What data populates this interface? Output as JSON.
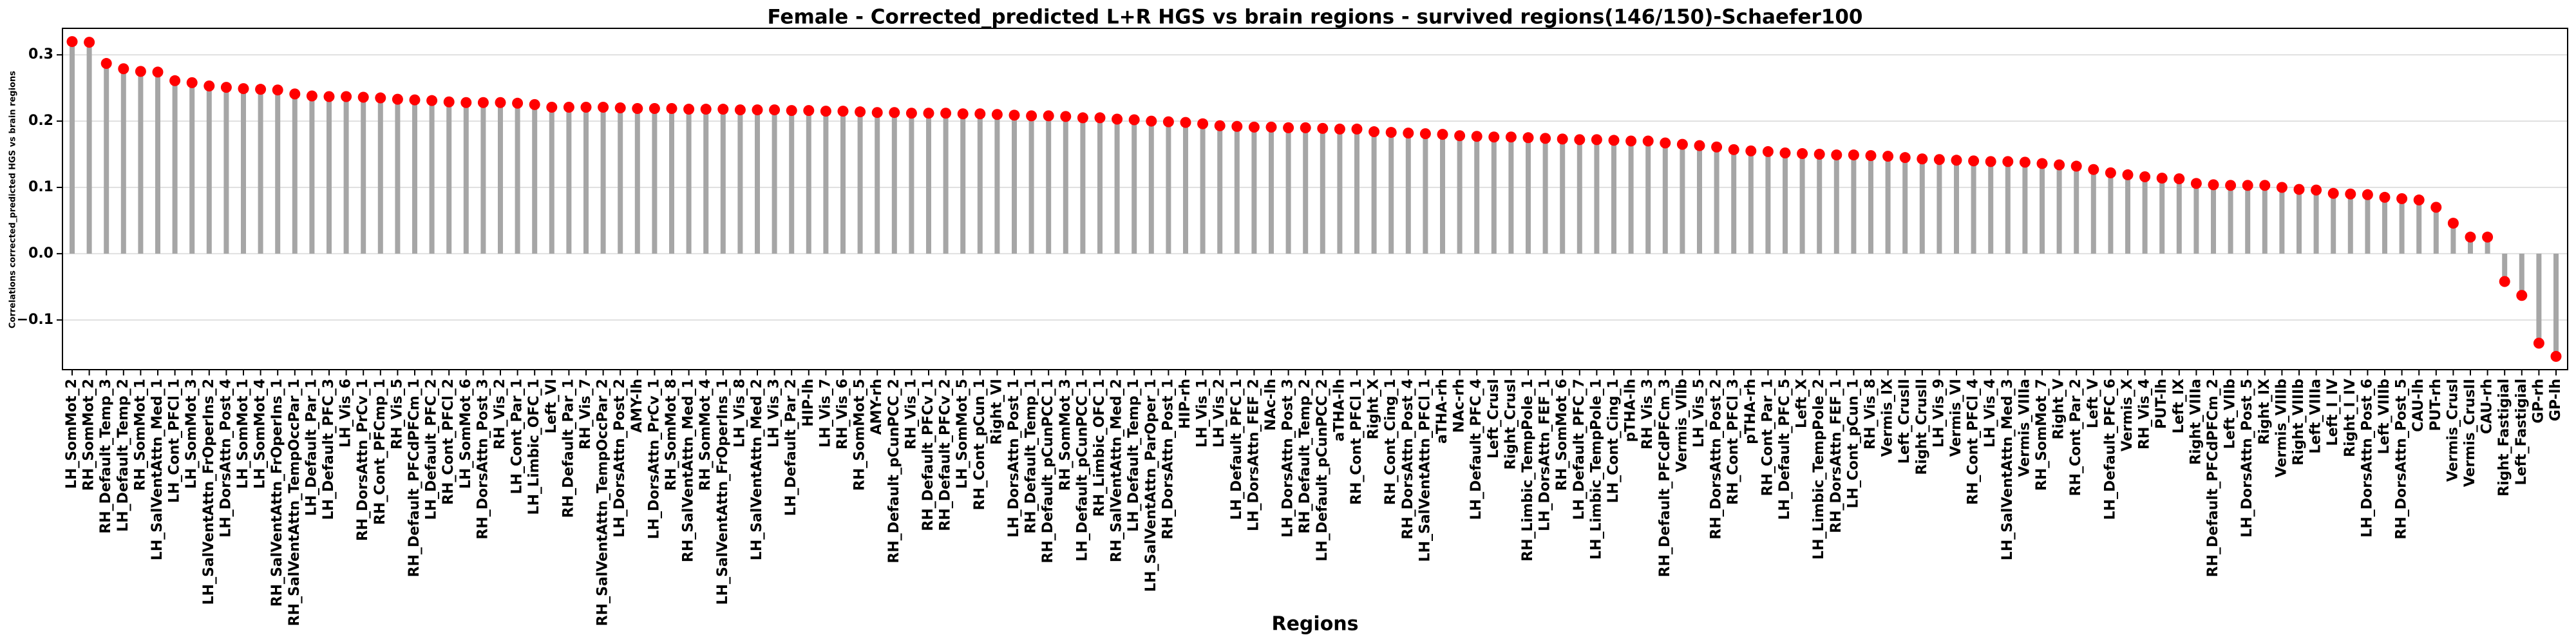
{
  "chart_data": {
    "type": "lollipop",
    "title": "Female - Corrected_predicted L+R HGS vs brain regions - survived regions(146/150)-Schaefer100",
    "xlabel": "Regions",
    "ylabel": "Correlations corrected_predicted HGS vs brain regions",
    "stem_color": "#a6a6a6",
    "marker_color": "#ff0000",
    "grid": true,
    "ylim": [
      -0.175,
      0.34
    ],
    "yticks": [
      {
        "value": -0.1,
        "label": "−0.1"
      },
      {
        "value": 0,
        "label": "0.0"
      },
      {
        "value": 0.1,
        "label": "0.1"
      },
      {
        "value": 0.2,
        "label": "0.2"
      },
      {
        "value": 0.3,
        "label": "0.3"
      }
    ],
    "categories": [
      "LH_SomMot_2",
      "RH_SomMot_2",
      "RH_Default_Temp_3",
      "LH_Default_Temp_2",
      "RH_SomMot_1",
      "LH_SalVentAttn_Med_1",
      "LH_Cont_PFCl_1",
      "LH_SomMot_3",
      "LH_SalVentAttn_FrOperIns_2",
      "LH_DorsAttn_Post_4",
      "LH_SomMot_1",
      "LH_SomMot_4",
      "RH_SalVentAttn_FrOperIns_1",
      "RH_SalVentAttn_TempOccPar_1",
      "LH_Default_Par_1",
      "LH_Default_PFC_3",
      "LH_Vis_6",
      "RH_DorsAttn_PrCv_1",
      "RH_Cont_PFCmp_1",
      "RH_Vis_5",
      "RH_Default_PFCdPFCm_1",
      "LH_Default_PFC_2",
      "RH_Cont_PFCl_2",
      "LH_SomMot_6",
      "RH_DorsAttn_Post_3",
      "RH_Vis_2",
      "LH_Cont_Par_1",
      "LH_Limbic_OFC_1",
      "Left_VI",
      "RH_Default_Par_1",
      "RH_Vis_7",
      "RH_SalVentAttn_TempOccPar_2",
      "LH_DorsAttn_Post_2",
      "AMY-lh",
      "LH_DorsAttn_PrCv_1",
      "RH_SomMot_8",
      "RH_SalVentAttn_Med_1",
      "RH_SomMot_4",
      "LH_SalVentAttn_FrOperIns_1",
      "LH_Vis_8",
      "LH_SalVentAttn_Med_2",
      "LH_Vis_3",
      "LH_Default_Par_2",
      "HIP-lh",
      "LH_Vis_7",
      "RH_Vis_6",
      "RH_SomMot_5",
      "AMY-rh",
      "RH_Default_pCunPCC_2",
      "RH_Vis_1",
      "RH_Default_PFCv_1",
      "RH_Default_PFCv_2",
      "LH_SomMot_5",
      "RH_Cont_pCun_1",
      "Right_VI",
      "LH_DorsAttn_Post_1",
      "RH_Default_Temp_1",
      "RH_Default_pCunPCC_1",
      "RH_SomMot_3",
      "LH_Default_pCunPCC_1",
      "RH_Limbic_OFC_1",
      "RH_SalVentAttn_Med_2",
      "LH_Default_Temp_1",
      "LH_SalVentAttn_ParOper_1",
      "RH_DorsAttn_Post_1",
      "HIP-rh",
      "LH_Vis_1",
      "LH_Vis_2",
      "LH_Default_PFC_1",
      "LH_DorsAttn_FEF_2",
      "NAc-lh",
      "LH_DorsAttn_Post_3",
      "RH_Default_Temp_2",
      "LH_Default_pCunPCC_2",
      "aTHA-lh",
      "RH_Cont_PFCl_1",
      "Right_X",
      "RH_Cont_Cing_1",
      "RH_DorsAttn_Post_4",
      "LH_SalVentAttn_PFCl_1",
      "aTHA-rh",
      "NAc-rh",
      "LH_Default_PFC_4",
      "Left_CrusI",
      "Right_CrusI",
      "RH_Limbic_TempPole_1",
      "LH_DorsAttn_FEF_1",
      "RH_SomMot_6",
      "LH_Default_PFC_7",
      "LH_Limbic_TempPole_1",
      "LH_Cont_Cing_1",
      "pTHA-lh",
      "RH_Vis_3",
      "RH_Default_PFCdPFCm_3",
      "Vermis_VIIb",
      "LH_Vis_5",
      "RH_DorsAttn_Post_2",
      "RH_Cont_PFCl_3",
      "pTHA-rh",
      "RH_Cont_Par_1",
      "LH_Default_PFC_5",
      "Left_X",
      "LH_Limbic_TempPole_2",
      "RH_DorsAttn_FEF_1",
      "LH_Cont_pCun_1",
      "RH_Vis_8",
      "Vermis_IX",
      "Left_CrusII",
      "Right_CrusII",
      "LH_Vis_9",
      "Vermis_VI",
      "RH_Cont_PFCl_4",
      "LH_Vis_4",
      "LH_SalVentAttn_Med_3",
      "Vermis_VIIIa",
      "RH_SomMot_7",
      "Right_V",
      "RH_Cont_Par_2",
      "Left_V",
      "LH_Default_PFC_6",
      "Vermis_X",
      "RH_Vis_4",
      "PUT-lh",
      "Left_IX",
      "Right_VIIIa",
      "RH_Default_PFCdPFCm_2",
      "Left_VIIb",
      "LH_DorsAttn_Post_5",
      "Right_IX",
      "Vermis_VIIIb",
      "Right_VIIIb",
      "Left_VIIIa",
      "Left_I_IV",
      "Right_I_IV",
      "LH_DorsAttn_Post_6",
      "Left_VIIIb",
      "RH_DorsAttn_Post_5",
      "CAU-lh",
      "PUT-rh",
      "Vermis_CrusI",
      "Vermis_CrusII",
      "CAU-rh",
      "Right_Fastigial",
      "Left_Fastigial",
      "GP-rh",
      "GP-lh"
    ],
    "values": [
      0.32,
      0.319,
      0.287,
      0.279,
      0.275,
      0.274,
      0.261,
      0.258,
      0.253,
      0.251,
      0.249,
      0.248,
      0.247,
      0.241,
      0.238,
      0.237,
      0.237,
      0.236,
      0.235,
      0.233,
      0.232,
      0.231,
      0.229,
      0.228,
      0.228,
      0.228,
      0.227,
      0.225,
      0.221,
      0.221,
      0.221,
      0.221,
      0.22,
      0.219,
      0.219,
      0.219,
      0.218,
      0.218,
      0.218,
      0.217,
      0.217,
      0.217,
      0.216,
      0.216,
      0.215,
      0.215,
      0.214,
      0.213,
      0.213,
      0.212,
      0.212,
      0.212,
      0.211,
      0.211,
      0.21,
      0.209,
      0.208,
      0.208,
      0.207,
      0.205,
      0.205,
      0.203,
      0.202,
      0.2,
      0.199,
      0.198,
      0.196,
      0.193,
      0.192,
      0.191,
      0.191,
      0.19,
      0.19,
      0.189,
      0.188,
      0.188,
      0.184,
      0.183,
      0.182,
      0.181,
      0.18,
      0.178,
      0.177,
      0.176,
      0.176,
      0.175,
      0.174,
      0.173,
      0.172,
      0.172,
      0.171,
      0.17,
      0.17,
      0.167,
      0.165,
      0.163,
      0.161,
      0.157,
      0.155,
      0.154,
      0.152,
      0.151,
      0.15,
      0.149,
      0.149,
      0.148,
      0.147,
      0.145,
      0.143,
      0.142,
      0.141,
      0.14,
      0.139,
      0.139,
      0.138,
      0.136,
      0.134,
      0.132,
      0.127,
      0.122,
      0.119,
      0.116,
      0.114,
      0.113,
      0.106,
      0.104,
      0.103,
      0.103,
      0.103,
      0.1,
      0.097,
      0.096,
      0.091,
      0.09,
      0.089,
      0.085,
      0.083,
      0.081,
      0.07,
      0.046,
      0.025,
      0.025,
      -0.042,
      -0.063,
      -0.135,
      -0.155
    ]
  }
}
